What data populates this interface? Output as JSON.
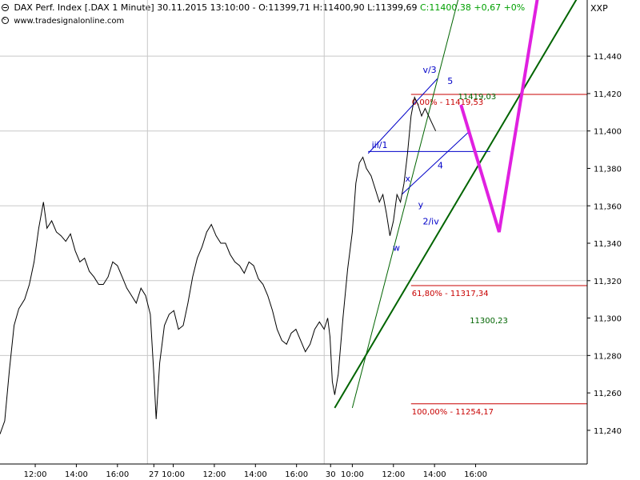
{
  "header": {
    "name": "DAX Perf. Index [.DAX",
    "interval": "1 Minute]",
    "datetime": "30.11.2015 13:10:00",
    "ohlc": "O:11399,71 H:11400,90 L:11399,69",
    "close_change": "C:11400,38 +0,67 +0%",
    "instrument": "XXP",
    "credit": "www.tradesignalonline.com"
  },
  "colors": {
    "grid": "#c8c8c8",
    "price": "#000000",
    "fib": "#c80000",
    "trend": "#006400",
    "channel": "#0000c8",
    "forecast": "#e020e0",
    "close_green": "#00a000"
  },
  "chart_data": {
    "type": "line",
    "title": "DAX Perf. Index [.DAX 1 Minute]",
    "y_ticks": [
      11240,
      11260,
      11280,
      11300,
      11320,
      11340,
      11360,
      11380,
      11400,
      11420,
      11440
    ],
    "ylim": [
      11222,
      11470
    ],
    "x_ticks": [
      {
        "label": "12:00",
        "t": 0.06
      },
      {
        "label": "14:00",
        "t": 0.13
      },
      {
        "label": "16:00",
        "t": 0.2
      },
      {
        "label": "27",
        "t": 0.262
      },
      {
        "label": "10:00",
        "t": 0.295
      },
      {
        "label": "12:00",
        "t": 0.365
      },
      {
        "label": "14:00",
        "t": 0.435
      },
      {
        "label": "16:00",
        "t": 0.505
      },
      {
        "label": "30",
        "t": 0.563
      },
      {
        "label": "10:00",
        "t": 0.6
      },
      {
        "label": "12:00",
        "t": 0.67
      },
      {
        "label": "14:00",
        "t": 0.74
      },
      {
        "label": "16:00",
        "t": 0.81
      }
    ],
    "series": [
      {
        "values": [
          [
            0.0,
            11238
          ],
          [
            0.008,
            11245
          ],
          [
            0.016,
            11272
          ],
          [
            0.024,
            11296
          ],
          [
            0.032,
            11305
          ],
          [
            0.042,
            11310
          ],
          [
            0.05,
            11318
          ],
          [
            0.058,
            11330
          ],
          [
            0.066,
            11348
          ],
          [
            0.074,
            11362
          ],
          [
            0.08,
            11348
          ],
          [
            0.088,
            11352
          ],
          [
            0.096,
            11346
          ],
          [
            0.104,
            11344
          ],
          [
            0.112,
            11341
          ],
          [
            0.12,
            11345
          ],
          [
            0.128,
            11336
          ],
          [
            0.136,
            11330
          ],
          [
            0.144,
            11332
          ],
          [
            0.152,
            11325
          ],
          [
            0.16,
            11322
          ],
          [
            0.168,
            11318
          ],
          [
            0.176,
            11318
          ],
          [
            0.184,
            11322
          ],
          [
            0.192,
            11330
          ],
          [
            0.2,
            11328
          ],
          [
            0.208,
            11322
          ],
          [
            0.216,
            11316
          ],
          [
            0.224,
            11312
          ],
          [
            0.232,
            11308
          ],
          [
            0.24,
            11316
          ],
          [
            0.248,
            11312
          ],
          [
            0.256,
            11302
          ],
          [
            0.262,
            11270
          ],
          [
            0.266,
            11246
          ],
          [
            0.272,
            11276
          ],
          [
            0.28,
            11296
          ],
          [
            0.288,
            11302
          ],
          [
            0.296,
            11304
          ],
          [
            0.304,
            11294
          ],
          [
            0.312,
            11296
          ],
          [
            0.32,
            11308
          ],
          [
            0.328,
            11322
          ],
          [
            0.336,
            11332
          ],
          [
            0.344,
            11338
          ],
          [
            0.352,
            11346
          ],
          [
            0.36,
            11350
          ],
          [
            0.368,
            11344
          ],
          [
            0.376,
            11340
          ],
          [
            0.384,
            11340
          ],
          [
            0.392,
            11334
          ],
          [
            0.4,
            11330
          ],
          [
            0.408,
            11328
          ],
          [
            0.416,
            11324
          ],
          [
            0.424,
            11330
          ],
          [
            0.432,
            11328
          ],
          [
            0.44,
            11321
          ],
          [
            0.448,
            11318
          ],
          [
            0.456,
            11312
          ],
          [
            0.464,
            11304
          ],
          [
            0.472,
            11294
          ],
          [
            0.48,
            11288
          ],
          [
            0.488,
            11286
          ],
          [
            0.496,
            11292
          ],
          [
            0.504,
            11294
          ],
          [
            0.512,
            11288
          ],
          [
            0.52,
            11282
          ],
          [
            0.528,
            11286
          ],
          [
            0.536,
            11294
          ],
          [
            0.544,
            11298
          ],
          [
            0.552,
            11294
          ],
          [
            0.558,
            11300
          ],
          [
            0.562,
            11290
          ],
          [
            0.566,
            11266
          ],
          [
            0.57,
            11259
          ],
          [
            0.576,
            11270
          ],
          [
            0.584,
            11300
          ],
          [
            0.592,
            11326
          ],
          [
            0.6,
            11346
          ],
          [
            0.606,
            11372
          ],
          [
            0.612,
            11383
          ],
          [
            0.618,
            11386
          ],
          [
            0.624,
            11380
          ],
          [
            0.632,
            11376
          ],
          [
            0.64,
            11368
          ],
          [
            0.646,
            11362
          ],
          [
            0.652,
            11366
          ],
          [
            0.658,
            11356
          ],
          [
            0.664,
            11344
          ],
          [
            0.67,
            11352
          ],
          [
            0.676,
            11366
          ],
          [
            0.682,
            11362
          ],
          [
            0.688,
            11372
          ],
          [
            0.694,
            11388
          ],
          [
            0.7,
            11408
          ],
          [
            0.706,
            11418
          ],
          [
            0.712,
            11414
          ],
          [
            0.718,
            11408
          ],
          [
            0.724,
            11412
          ],
          [
            0.73,
            11408
          ],
          [
            0.736,
            11404
          ],
          [
            0.742,
            11400
          ]
        ]
      }
    ],
    "levels": [
      {
        "label": "0,00% - 11419,53",
        "value": 11419.53,
        "t_start": 0.7,
        "t_end": 1.0
      },
      {
        "label": "61,80% - 11317,34",
        "value": 11317.34,
        "t_start": 0.7,
        "t_end": 1.0
      },
      {
        "label": "100,00% - 11254,17",
        "value": 11254.17,
        "t_start": 0.7,
        "t_end": 1.0
      }
    ],
    "trendline": {
      "label": "11300,23",
      "from": [
        0.57,
        11252
      ],
      "to": [
        1.0,
        11480
      ]
    },
    "steep_line": {
      "from": [
        0.6,
        11252
      ],
      "to": [
        0.78,
        11470
      ]
    },
    "channel": {
      "upper": {
        "from": [
          0.627,
          11388
        ],
        "to": [
          0.745,
          11428
        ]
      },
      "lower": {
        "from": [
          0.684,
          11366
        ],
        "to": [
          0.8,
          11400
        ]
      },
      "horizontal": {
        "from": [
          0.627,
          11389
        ],
        "to": [
          0.835,
          11389
        ]
      }
    },
    "forecast": [
      [
        0.785,
        11414
      ],
      [
        0.85,
        11346
      ],
      [
        0.92,
        11480
      ]
    ],
    "wave_labels": [
      {
        "text": "v/3",
        "x": 0.72,
        "y": 11431
      },
      {
        "text": "5",
        "x": 0.762,
        "y": 11425
      },
      {
        "text": "iii/1",
        "x": 0.633,
        "y": 11391
      },
      {
        "text": "4",
        "x": 0.745,
        "y": 11380
      },
      {
        "text": "x",
        "x": 0.69,
        "y": 11373
      },
      {
        "text": "y",
        "x": 0.712,
        "y": 11359
      },
      {
        "text": "2/iv",
        "x": 0.72,
        "y": 11350
      },
      {
        "text": "w",
        "x": 0.669,
        "y": 11336
      },
      {
        "text": "11419,03",
        "x": 0.78,
        "y": 11417
      }
    ]
  }
}
